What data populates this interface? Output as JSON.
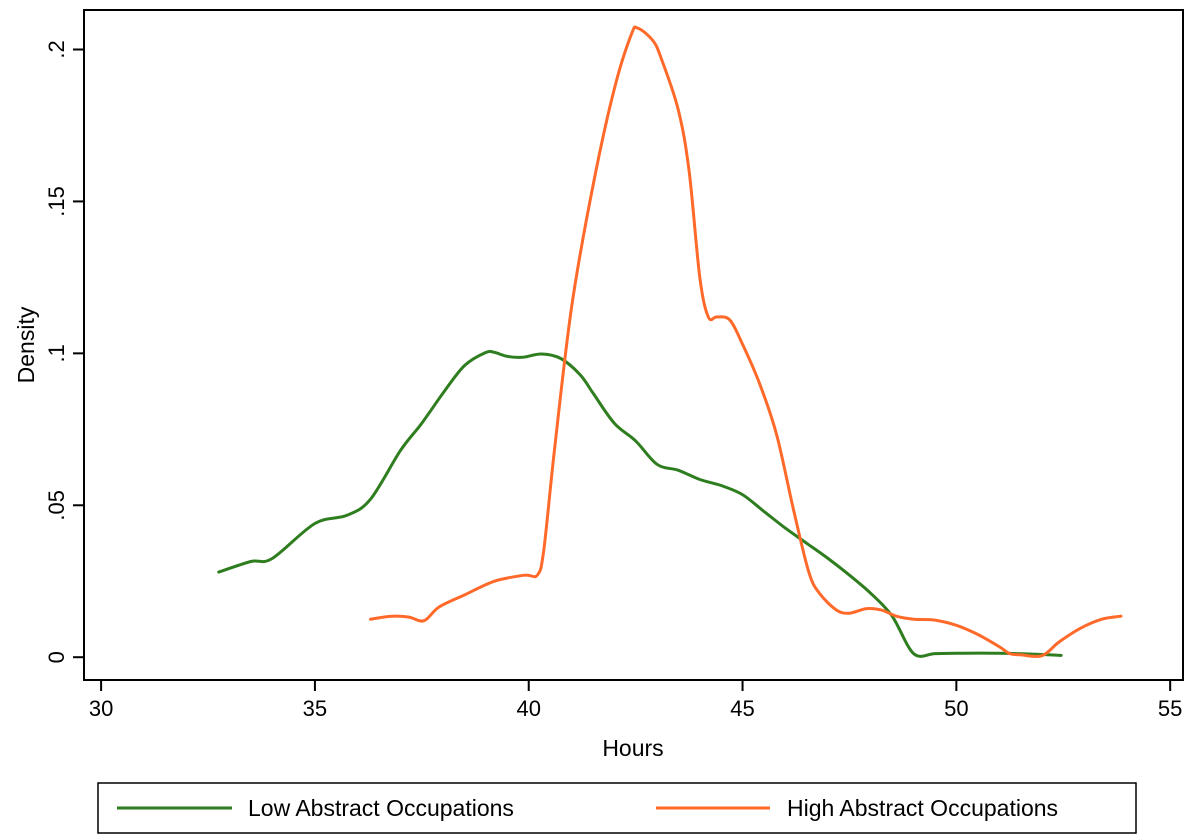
{
  "chart_data": {
    "type": "line",
    "title": "",
    "xlabel": "Hours",
    "ylabel": "Density",
    "xlim": [
      29.6,
      55.3
    ],
    "ylim": [
      -0.0075,
      0.213
    ],
    "x_ticks": [
      {
        "value": 30,
        "label": "30"
      },
      {
        "value": 35,
        "label": "35"
      },
      {
        "value": 40,
        "label": "40"
      },
      {
        "value": 45,
        "label": "45"
      },
      {
        "value": 50,
        "label": "50"
      },
      {
        "value": 55,
        "label": "55"
      }
    ],
    "y_ticks": [
      {
        "value": 0,
        "label": "0"
      },
      {
        "value": 0.05,
        "label": ".05"
      },
      {
        "value": 0.1,
        "label": ".1"
      },
      {
        "value": 0.15,
        "label": ".15"
      },
      {
        "value": 0.2,
        "label": ".2"
      }
    ],
    "grid": false,
    "legend_position": "bottom",
    "series": [
      {
        "name": "Low Abstract Occupations",
        "color": "#2e7d1e",
        "x": [
          32.75,
          33.5,
          34.0,
          35.0,
          35.75,
          36.3,
          37.0,
          37.5,
          38.0,
          38.5,
          39.0,
          39.2,
          39.5,
          39.85,
          40.3,
          40.75,
          41.2,
          41.5,
          42.0,
          42.5,
          43.0,
          43.5,
          44.0,
          44.5,
          45.0,
          45.5,
          46.0,
          46.5,
          47.0,
          47.5,
          48.0,
          48.5,
          49.0,
          49.5,
          50.0,
          51.0,
          52.0,
          52.45
        ],
        "y": [
          0.028,
          0.0315,
          0.0325,
          0.044,
          0.0467,
          0.052,
          0.068,
          0.077,
          0.087,
          0.096,
          0.1003,
          0.1003,
          0.099,
          0.0987,
          0.0998,
          0.0983,
          0.093,
          0.087,
          0.077,
          0.0712,
          0.0635,
          0.0615,
          0.0585,
          0.0565,
          0.0535,
          0.048,
          0.0425,
          0.0375,
          0.0325,
          0.027,
          0.021,
          0.0135,
          0.0012,
          0.0012,
          0.0013,
          0.0013,
          0.0009,
          0.0006
        ]
      },
      {
        "name": "High Abstract Occupations",
        "color": "#ff6a2a",
        "x": [
          36.3,
          36.8,
          37.2,
          37.55,
          37.9,
          38.5,
          39.2,
          39.9,
          40.2,
          40.35,
          40.6,
          41.0,
          41.5,
          42.0,
          42.4,
          42.55,
          42.9,
          43.1,
          43.5,
          43.75,
          44.0,
          44.2,
          44.4,
          44.7,
          45.0,
          45.4,
          45.8,
          46.2,
          46.55,
          46.8,
          47.2,
          47.5,
          47.9,
          48.25,
          48.6,
          49.0,
          49.5,
          50.0,
          50.5,
          51.0,
          51.25,
          51.5,
          52.0,
          52.4,
          52.9,
          53.4,
          53.85
        ],
        "y": [
          0.0125,
          0.0135,
          0.0132,
          0.012,
          0.0165,
          0.0205,
          0.025,
          0.027,
          0.027,
          0.035,
          0.068,
          0.115,
          0.155,
          0.187,
          0.205,
          0.207,
          0.203,
          0.197,
          0.18,
          0.16,
          0.125,
          0.112,
          0.112,
          0.111,
          0.103,
          0.09,
          0.073,
          0.048,
          0.028,
          0.021,
          0.0155,
          0.0145,
          0.016,
          0.0155,
          0.0135,
          0.0125,
          0.0122,
          0.0105,
          0.0075,
          0.0035,
          0.0012,
          0.0008,
          0.0005,
          0.005,
          0.0095,
          0.0125,
          0.0135
        ]
      }
    ]
  }
}
